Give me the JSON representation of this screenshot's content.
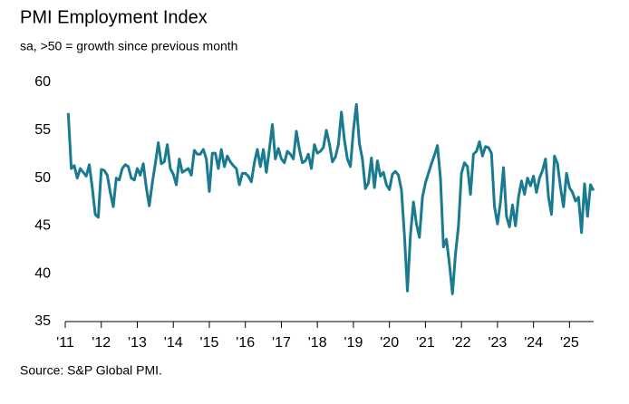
{
  "chart_data": {
    "type": "line",
    "title": "PMI Employment Index",
    "subtitle": "sa, >50 = growth since previous month",
    "source": "Source: S&P Global PMI.",
    "x": [
      2011.083,
      2011.167,
      2011.25,
      2011.333,
      2011.417,
      2011.5,
      2011.583,
      2011.667,
      2011.75,
      2011.833,
      2011.917,
      2012,
      2012.083,
      2012.167,
      2012.25,
      2012.333,
      2012.417,
      2012.5,
      2012.583,
      2012.667,
      2012.75,
      2012.833,
      2012.917,
      2013,
      2013.083,
      2013.167,
      2013.25,
      2013.333,
      2013.417,
      2013.5,
      2013.583,
      2013.667,
      2013.75,
      2013.833,
      2013.917,
      2014,
      2014.083,
      2014.167,
      2014.25,
      2014.333,
      2014.417,
      2014.5,
      2014.583,
      2014.667,
      2014.75,
      2014.833,
      2014.917,
      2015,
      2015.083,
      2015.167,
      2015.25,
      2015.333,
      2015.417,
      2015.5,
      2015.583,
      2015.667,
      2015.75,
      2015.833,
      2015.917,
      2016,
      2016.083,
      2016.167,
      2016.25,
      2016.333,
      2016.417,
      2016.5,
      2016.583,
      2016.667,
      2016.75,
      2016.833,
      2016.917,
      2017,
      2017.083,
      2017.167,
      2017.25,
      2017.333,
      2017.417,
      2017.5,
      2017.583,
      2017.667,
      2017.75,
      2017.833,
      2017.917,
      2018,
      2018.083,
      2018.167,
      2018.25,
      2018.333,
      2018.417,
      2018.5,
      2018.583,
      2018.667,
      2018.75,
      2018.833,
      2018.917,
      2019,
      2019.083,
      2019.167,
      2019.25,
      2019.333,
      2019.417,
      2019.5,
      2019.583,
      2019.667,
      2019.75,
      2019.833,
      2019.917,
      2020,
      2020.083,
      2020.167,
      2020.25,
      2020.333,
      2020.417,
      2020.5,
      2020.583,
      2020.667,
      2020.75,
      2020.833,
      2020.917,
      2021,
      2021.083,
      2021.167,
      2021.25,
      2021.333,
      2021.417,
      2021.5,
      2021.583,
      2021.667,
      2021.75,
      2021.833,
      2021.917,
      2022,
      2022.083,
      2022.167,
      2022.25,
      2022.333,
      2022.417,
      2022.5,
      2022.583,
      2022.667,
      2022.75,
      2022.833,
      2022.917,
      2023,
      2023.083,
      2023.167,
      2023.25,
      2023.333,
      2023.417,
      2023.5,
      2023.583,
      2023.667,
      2023.75,
      2023.833,
      2023.917,
      2024,
      2024.083,
      2024.167,
      2024.25,
      2024.333,
      2024.417,
      2024.5,
      2024.583,
      2024.667,
      2024.75,
      2024.833,
      2024.917,
      2025,
      2025.083,
      2025.167,
      2025.25,
      2025.333,
      2025.417,
      2025.5,
      2025.583,
      2025.667
    ],
    "series": [
      {
        "name": "PMI Employment Index",
        "color": "#1a7b90",
        "values": [
          56.8,
          51.0,
          51.3,
          50.0,
          51.0,
          50.6,
          50.2,
          51.4,
          49.0,
          46.2,
          45.9,
          50.9,
          50.8,
          50.3,
          48.5,
          47.0,
          50.0,
          49.8,
          51.0,
          51.4,
          51.2,
          50.0,
          49.8,
          51.0,
          50.3,
          51.5,
          49.0,
          47.1,
          49.5,
          51.5,
          53.7,
          51.5,
          51.7,
          53.5,
          51.0,
          50.4,
          49.3,
          52.0,
          50.6,
          50.8,
          51.0,
          50.3,
          52.9,
          52.5,
          52.5,
          53.0,
          52.0,
          48.6,
          52.6,
          52.6,
          51.0,
          53.0,
          51.2,
          52.3,
          51.7,
          51.3,
          51.0,
          49.3,
          50.5,
          50.5,
          50.2,
          49.6,
          51.6,
          53.0,
          51.2,
          53.0,
          50.6,
          53.0,
          55.6,
          52.0,
          53.1,
          52.0,
          51.6,
          52.8,
          52.5,
          52.0,
          54.9,
          53.0,
          51.6,
          51.8,
          52.5,
          51.0,
          53.5,
          52.6,
          52.8,
          53.2,
          55.0,
          53.6,
          51.7,
          52.2,
          53.5,
          56.9,
          54.0,
          52.0,
          51.2,
          55.0,
          57.7,
          53.6,
          52.0,
          48.9,
          49.5,
          52.1,
          49.0,
          51.8,
          50.2,
          50.6,
          49.3,
          48.8,
          50.4,
          50.7,
          50.3,
          48.8,
          44.0,
          38.2,
          44.0,
          47.5,
          45.2,
          43.8,
          48.0,
          49.5,
          50.5,
          51.5,
          52.4,
          53.4,
          50.0,
          42.8,
          43.6,
          41.0,
          37.9,
          42.0,
          45.0,
          50.5,
          51.6,
          51.2,
          48.3,
          52.5,
          52.8,
          53.8,
          52.3,
          53.3,
          53.2,
          52.6,
          47.0,
          45.2,
          47.5,
          51.1,
          46.0,
          44.9,
          47.2,
          45.0,
          48.0,
          49.7,
          48.3,
          50.0,
          49.2,
          50.2,
          48.5,
          50.0,
          50.8,
          52.0,
          48.0,
          46.2,
          52.3,
          51.5,
          49.0,
          47.0,
          50.5,
          49.0,
          48.5,
          47.6,
          48.0,
          44.3,
          49.4,
          46.0,
          49.3,
          48.7
        ]
      }
    ],
    "xlim": [
      2011,
      2025.67
    ],
    "xticks": [
      {
        "value": 2011,
        "label": "'11"
      },
      {
        "value": 2012,
        "label": "'12"
      },
      {
        "value": 2013,
        "label": "'13"
      },
      {
        "value": 2014,
        "label": "'14"
      },
      {
        "value": 2015,
        "label": "'15"
      },
      {
        "value": 2016,
        "label": "'16"
      },
      {
        "value": 2017,
        "label": "'17"
      },
      {
        "value": 2018,
        "label": "'18"
      },
      {
        "value": 2019,
        "label": "'19"
      },
      {
        "value": 2020,
        "label": "'20"
      },
      {
        "value": 2021,
        "label": "'21"
      },
      {
        "value": 2022,
        "label": "'22"
      },
      {
        "value": 2023,
        "label": "'23"
      },
      {
        "value": 2024,
        "label": "'24"
      },
      {
        "value": 2025,
        "label": "'25"
      }
    ],
    "ylim": [
      35,
      60
    ],
    "yticks": [
      35,
      40,
      45,
      50,
      55,
      60
    ]
  }
}
